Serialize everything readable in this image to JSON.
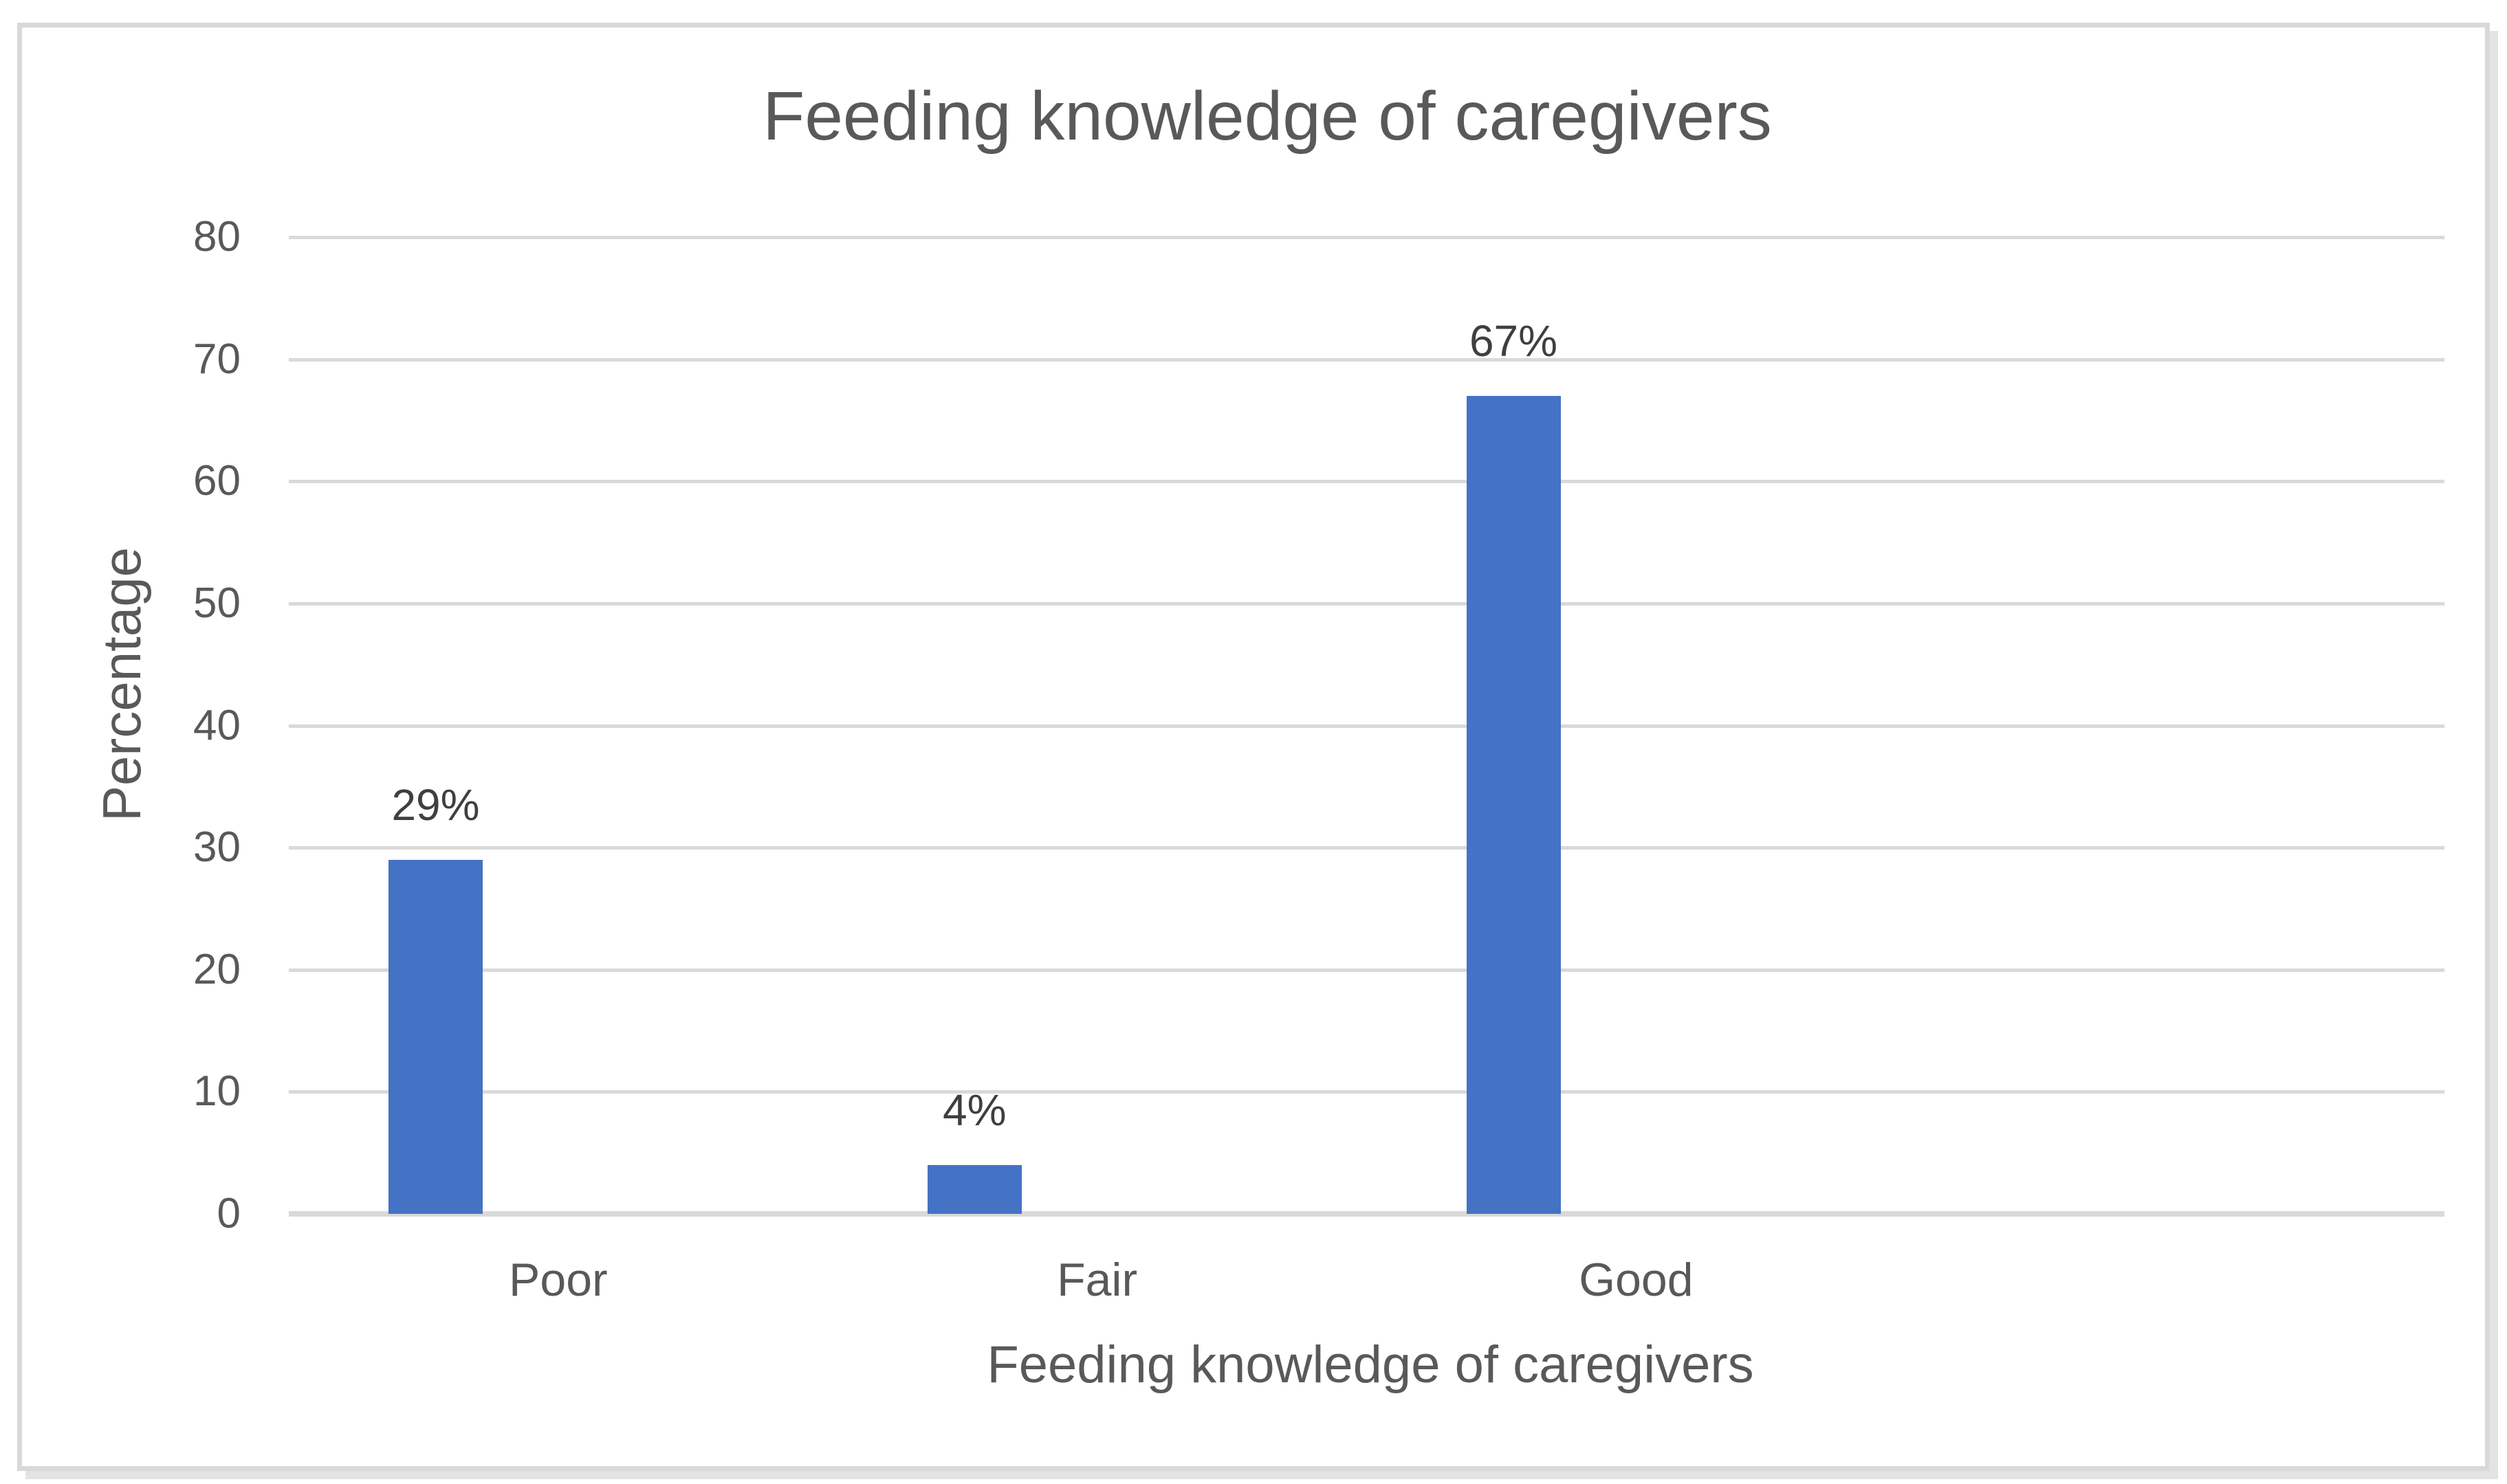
{
  "chart_data": {
    "type": "bar",
    "title": "Feeding knowledge of caregivers",
    "categories": [
      "Poor",
      "Fair",
      "Good"
    ],
    "values": [
      29,
      4,
      67
    ],
    "data_labels": [
      "29%",
      "4%",
      "67%"
    ],
    "xlabel": "Feeding knowledge of caregivers",
    "ylabel": "Percentage",
    "ylim": [
      0,
      80
    ],
    "ytick_step": 10,
    "ytick_labels": [
      "0",
      "10",
      "20",
      "30",
      "40",
      "50",
      "60",
      "70",
      "80"
    ],
    "grid": true,
    "legend": false,
    "bar_color": "#4472C4",
    "gridline_color": "#D9D9D9",
    "text_color": "#595959",
    "data_label_color": "#3F3F3F",
    "frame_border_color": "#D9D9D9"
  }
}
